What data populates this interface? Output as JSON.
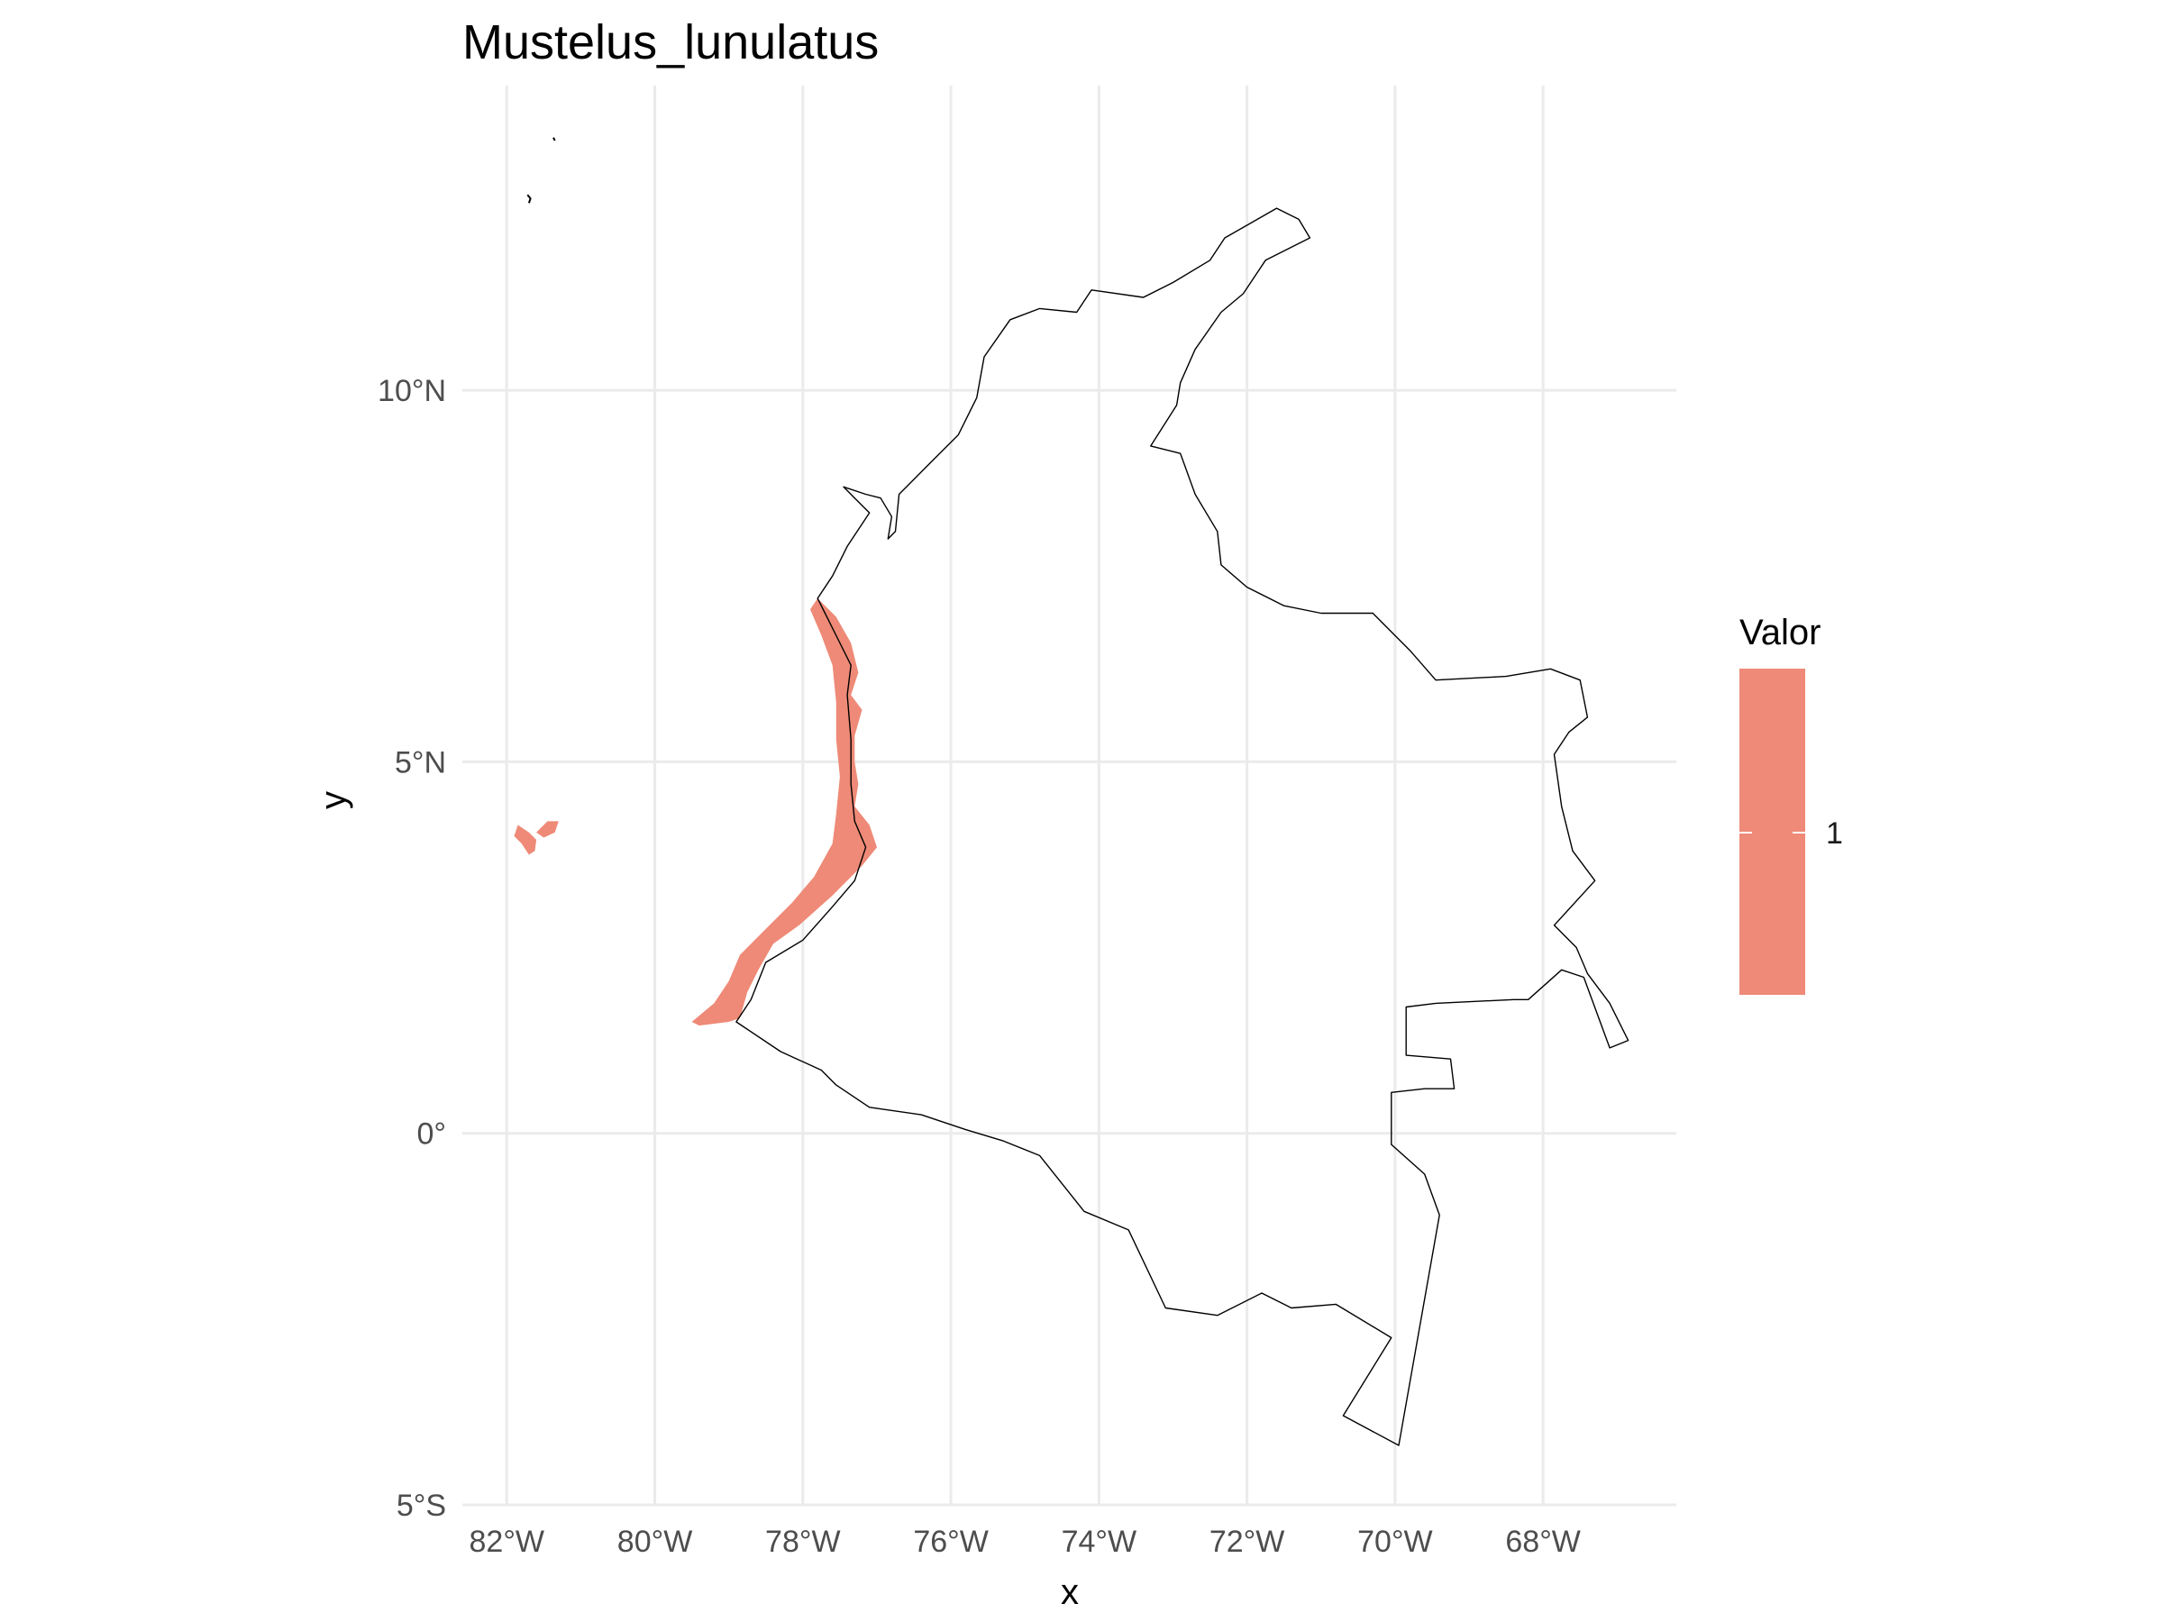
{
  "chart_data": {
    "type": "map",
    "title": "Mustelus_lunulatus",
    "xlabel": "x",
    "ylabel": "y",
    "x_ticks": [
      {
        "value": -82,
        "label": "82°W"
      },
      {
        "value": -80,
        "label": "80°W"
      },
      {
        "value": -78,
        "label": "78°W"
      },
      {
        "value": -76,
        "label": "76°W"
      },
      {
        "value": -74,
        "label": "74°W"
      },
      {
        "value": -72,
        "label": "72°W"
      },
      {
        "value": -70,
        "label": "70°W"
      },
      {
        "value": -68,
        "label": "68°W"
      }
    ],
    "y_ticks": [
      {
        "value": 10,
        "label": "10°N"
      },
      {
        "value": 5,
        "label": "5°N"
      },
      {
        "value": 0,
        "label": "0°"
      },
      {
        "value": -5,
        "label": "5°S"
      }
    ],
    "xlim": [
      -82.6,
      -66.2
    ],
    "ylim": [
      -5,
      14.1
    ],
    "grid": true,
    "legend": {
      "title": "Valor",
      "placement": "right",
      "items": [
        {
          "label": "1",
          "color": "#ee8a77"
        }
      ]
    },
    "fill_color": "#ee8a77",
    "outline_color": "#000000",
    "country_outline": [
      [
        -77.8,
        7.2
      ],
      [
        -77.6,
        7.5
      ],
      [
        -77.4,
        7.9
      ],
      [
        -77.1,
        8.35
      ],
      [
        -77.3,
        8.55
      ],
      [
        -77.45,
        8.7
      ],
      [
        -77.15,
        8.6
      ],
      [
        -76.95,
        8.55
      ],
      [
        -76.8,
        8.3
      ],
      [
        -76.85,
        8.0
      ],
      [
        -76.75,
        8.1
      ],
      [
        -76.7,
        8.6
      ],
      [
        -76.3,
        9.0
      ],
      [
        -75.9,
        9.4
      ],
      [
        -75.65,
        9.9
      ],
      [
        -75.55,
        10.45
      ],
      [
        -75.2,
        10.95
      ],
      [
        -74.8,
        11.1
      ],
      [
        -74.3,
        11.05
      ],
      [
        -74.1,
        11.35
      ],
      [
        -73.4,
        11.25
      ],
      [
        -73.0,
        11.45
      ],
      [
        -72.5,
        11.75
      ],
      [
        -72.3,
        12.05
      ],
      [
        -71.95,
        12.25
      ],
      [
        -71.6,
        12.45
      ],
      [
        -71.3,
        12.3
      ],
      [
        -71.15,
        12.05
      ],
      [
        -71.75,
        11.75
      ],
      [
        -72.05,
        11.3
      ],
      [
        -72.35,
        11.05
      ],
      [
        -72.7,
        10.55
      ],
      [
        -72.9,
        10.1
      ],
      [
        -72.95,
        9.8
      ],
      [
        -73.3,
        9.25
      ],
      [
        -72.9,
        9.15
      ],
      [
        -72.7,
        8.6
      ],
      [
        -72.4,
        8.1
      ],
      [
        -72.35,
        7.65
      ],
      [
        -72.0,
        7.35
      ],
      [
        -71.5,
        7.1
      ],
      [
        -71.0,
        7.0
      ],
      [
        -70.3,
        7.0
      ],
      [
        -69.8,
        6.5
      ],
      [
        -69.45,
        6.1
      ],
      [
        -68.5,
        6.15
      ],
      [
        -67.9,
        6.25
      ],
      [
        -67.5,
        6.1
      ],
      [
        -67.4,
        5.6
      ],
      [
        -67.65,
        5.4
      ],
      [
        -67.85,
        5.1
      ],
      [
        -67.75,
        4.4
      ],
      [
        -67.6,
        3.8
      ],
      [
        -67.3,
        3.4
      ],
      [
        -67.85,
        2.8
      ],
      [
        -67.55,
        2.5
      ],
      [
        -67.4,
        2.15
      ],
      [
        -67.1,
        1.75
      ],
      [
        -66.85,
        1.25
      ],
      [
        -67.1,
        1.15
      ],
      [
        -67.45,
        2.1
      ],
      [
        -67.75,
        2.2
      ],
      [
        -68.2,
        1.8
      ],
      [
        -68.4,
        1.8
      ],
      [
        -69.45,
        1.75
      ],
      [
        -69.85,
        1.7
      ],
      [
        -69.85,
        1.05
      ],
      [
        -69.25,
        1.0
      ],
      [
        -69.2,
        0.6
      ],
      [
        -69.6,
        0.6
      ],
      [
        -70.05,
        0.55
      ],
      [
        -70.05,
        -0.15
      ],
      [
        -69.6,
        -0.55
      ],
      [
        -69.4,
        -1.1
      ],
      [
        -69.95,
        -4.2
      ],
      [
        -70.7,
        -3.8
      ],
      [
        -70.05,
        -2.75
      ],
      [
        -70.8,
        -2.3
      ],
      [
        -71.4,
        -2.35
      ],
      [
        -71.8,
        -2.15
      ],
      [
        -72.4,
        -2.45
      ],
      [
        -73.1,
        -2.35
      ],
      [
        -73.6,
        -1.3
      ],
      [
        -74.2,
        -1.05
      ],
      [
        -74.8,
        -0.3
      ],
      [
        -75.3,
        -0.1
      ],
      [
        -75.8,
        0.05
      ],
      [
        -76.4,
        0.25
      ],
      [
        -77.1,
        0.35
      ],
      [
        -77.55,
        0.65
      ],
      [
        -77.75,
        0.85
      ],
      [
        -78.3,
        1.1
      ],
      [
        -78.9,
        1.5
      ],
      [
        -78.7,
        1.8
      ],
      [
        -78.5,
        2.3
      ],
      [
        -78.0,
        2.6
      ],
      [
        -77.6,
        3.05
      ],
      [
        -77.3,
        3.4
      ],
      [
        -77.15,
        3.85
      ],
      [
        -77.3,
        4.2
      ],
      [
        -77.35,
        4.7
      ],
      [
        -77.35,
        5.3
      ],
      [
        -77.4,
        5.9
      ],
      [
        -77.35,
        6.3
      ],
      [
        -77.5,
        6.6
      ],
      [
        -77.8,
        7.2
      ]
    ],
    "island_outlines": [
      [
        [
          -81.72,
          12.63
        ],
        [
          -81.68,
          12.58
        ],
        [
          -81.7,
          12.52
        ]
      ],
      [
        [
          -81.37,
          13.4
        ],
        [
          -81.35,
          13.36
        ]
      ]
    ],
    "presence_regions": [
      [
        [
          -77.8,
          7.2
        ],
        [
          -77.55,
          6.95
        ],
        [
          -77.35,
          6.6
        ],
        [
          -77.25,
          6.2
        ],
        [
          -77.35,
          5.9
        ],
        [
          -77.2,
          5.7
        ],
        [
          -77.3,
          5.35
        ],
        [
          -77.3,
          5.0
        ],
        [
          -77.25,
          4.7
        ],
        [
          -77.3,
          4.4
        ],
        [
          -77.1,
          4.15
        ],
        [
          -77.0,
          3.85
        ],
        [
          -77.2,
          3.6
        ],
        [
          -77.6,
          3.2
        ],
        [
          -78.05,
          2.8
        ],
        [
          -78.4,
          2.55
        ],
        [
          -78.6,
          2.2
        ],
        [
          -78.75,
          1.9
        ],
        [
          -78.85,
          1.55
        ],
        [
          -79.0,
          1.5
        ],
        [
          -79.4,
          1.45
        ],
        [
          -79.5,
          1.5
        ],
        [
          -79.2,
          1.75
        ],
        [
          -79.0,
          2.05
        ],
        [
          -78.85,
          2.4
        ],
        [
          -78.5,
          2.75
        ],
        [
          -78.15,
          3.1
        ],
        [
          -77.85,
          3.45
        ],
        [
          -77.6,
          3.9
        ],
        [
          -77.55,
          4.3
        ],
        [
          -77.5,
          4.8
        ],
        [
          -77.55,
          5.3
        ],
        [
          -77.55,
          5.8
        ],
        [
          -77.6,
          6.3
        ],
        [
          -77.75,
          6.7
        ],
        [
          -77.9,
          7.05
        ],
        [
          -77.8,
          7.2
        ]
      ],
      [
        [
          -81.85,
          4.15
        ],
        [
          -81.7,
          4.05
        ],
        [
          -81.6,
          3.95
        ],
        [
          -81.62,
          3.8
        ],
        [
          -81.7,
          3.75
        ],
        [
          -81.8,
          3.9
        ],
        [
          -81.9,
          4.0
        ],
        [
          -81.85,
          4.15
        ]
      ],
      [
        [
          -81.6,
          4.05
        ],
        [
          -81.45,
          4.2
        ],
        [
          -81.3,
          4.2
        ],
        [
          -81.35,
          4.05
        ],
        [
          -81.5,
          3.98
        ],
        [
          -81.6,
          4.05
        ]
      ]
    ]
  }
}
